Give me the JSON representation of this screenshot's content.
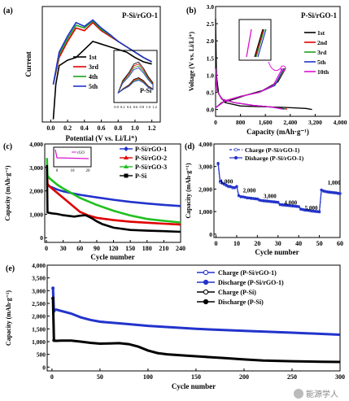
{
  "chart_data": [
    {
      "panel": "(a)",
      "type": "line",
      "annotation": "P-Si/rGO-1",
      "xlabel": "Potential (V vs. Li/Li⁺)",
      "ylabel": "Current",
      "xticks": [
        "0.0",
        "0.2",
        "0.4",
        "0.6",
        "0.8",
        "1.0",
        "1.2"
      ],
      "xlim": [
        -0.1,
        1.3
      ],
      "legend": [
        "1st",
        "3rd",
        "4th",
        "5th"
      ],
      "series": [
        {
          "name": "1st",
          "color": "#000000",
          "x": [
            0.03,
            0.06,
            0.1,
            0.2,
            0.3,
            0.4,
            0.5,
            0.6,
            0.7,
            0.8,
            0.9,
            1.0,
            1.1,
            1.2
          ],
          "y": [
            -0.95,
            -0.3,
            0.05,
            0.15,
            0.2,
            0.35,
            0.5,
            0.45,
            0.4,
            0.35,
            0.3,
            0.2,
            0.12,
            0.08
          ]
        },
        {
          "name": "3rd",
          "color": "#e00000",
          "x": [
            0.03,
            0.1,
            0.2,
            0.3,
            0.4,
            0.5,
            0.6,
            0.7,
            0.8,
            0.9,
            1.0,
            1.1,
            1.2
          ],
          "y": [
            -0.3,
            0.2,
            0.5,
            0.75,
            0.7,
            0.85,
            0.7,
            0.6,
            0.5,
            0.4,
            0.3,
            0.2,
            0.12
          ]
        },
        {
          "name": "4th",
          "color": "#20a020",
          "x": [
            0.03,
            0.1,
            0.2,
            0.3,
            0.4,
            0.5,
            0.6,
            0.7,
            0.8,
            0.9,
            1.0,
            1.1,
            1.2
          ],
          "y": [
            -0.3,
            0.25,
            0.55,
            0.8,
            0.75,
            0.88,
            0.72,
            0.62,
            0.5,
            0.4,
            0.3,
            0.2,
            0.12
          ]
        },
        {
          "name": "5th",
          "color": "#2233cc",
          "x": [
            0.03,
            0.1,
            0.2,
            0.3,
            0.4,
            0.5,
            0.6,
            0.7,
            0.8,
            0.9,
            1.0,
            1.1,
            1.2
          ],
          "y": [
            -0.3,
            0.3,
            0.6,
            0.85,
            0.78,
            0.9,
            0.75,
            0.63,
            0.5,
            0.4,
            0.3,
            0.2,
            0.12
          ]
        }
      ],
      "inset": {
        "label": "P-Si",
        "xticks": [
          "0.0",
          "0.2",
          "0.4",
          "0.6",
          "0.8",
          "1.0",
          "1.2"
        ]
      }
    },
    {
      "panel": "(b)",
      "type": "line",
      "annotation": "P-Si/rGO-1",
      "xlabel": "Capacity (mAh·g⁻¹)",
      "ylabel": "Voltage (V vs. Li/Li⁺)",
      "xticks": [
        "0",
        "800",
        "1,600",
        "2,400",
        "3,200",
        "4,000"
      ],
      "yticks": [
        "0.0",
        "0.5",
        "1.0",
        "1.5",
        "2.0",
        "2.5",
        "3.0"
      ],
      "xlim": [
        0,
        4000
      ],
      "ylim": [
        0,
        3.0
      ],
      "legend": [
        "1st",
        "2nd",
        "3rd",
        "5th",
        "10th"
      ],
      "series": [
        {
          "name": "1st",
          "color": "#000000",
          "discharge_x": [
            0,
            30,
            100,
            300,
            800,
            1500,
            2200,
            2900,
            3100
          ],
          "discharge_y": [
            2.65,
            1.0,
            0.45,
            0.2,
            0.1,
            0.08,
            0.06,
            0.03,
            0.0
          ],
          "charge_x": [
            0,
            200,
            600,
            1000,
            1500,
            2000,
            2250
          ],
          "charge_y": [
            0.05,
            0.2,
            0.3,
            0.42,
            0.55,
            0.8,
            1.2
          ]
        },
        {
          "name": "2nd",
          "color": "#e00000",
          "discharge_x": [
            0,
            50,
            200,
            600,
            1200,
            1800,
            2300
          ],
          "discharge_y": [
            1.2,
            0.55,
            0.3,
            0.2,
            0.12,
            0.07,
            0.01
          ],
          "charge_x": [
            0,
            300,
            800,
            1400,
            1900,
            2250
          ],
          "charge_y": [
            0.05,
            0.25,
            0.38,
            0.5,
            0.7,
            1.2
          ]
        },
        {
          "name": "3rd",
          "color": "#20a020",
          "discharge_x": [
            0,
            50,
            200,
            600,
            1200,
            1800,
            2250
          ],
          "discharge_y": [
            1.2,
            0.55,
            0.3,
            0.2,
            0.12,
            0.07,
            0.01
          ],
          "charge_x": [
            0,
            300,
            800,
            1400,
            1900,
            2230
          ],
          "charge_y": [
            0.05,
            0.25,
            0.38,
            0.5,
            0.7,
            1.2
          ]
        },
        {
          "name": "5th",
          "color": "#2233cc",
          "discharge_x": [
            0,
            50,
            200,
            600,
            1200,
            1800,
            2200
          ],
          "discharge_y": [
            1.2,
            0.55,
            0.3,
            0.2,
            0.12,
            0.07,
            0.01
          ],
          "charge_x": [
            0,
            300,
            800,
            1400,
            1900,
            2200
          ],
          "charge_y": [
            0.05,
            0.25,
            0.38,
            0.5,
            0.7,
            1.2
          ]
        },
        {
          "name": "10th",
          "color": "#e010d0",
          "discharge_x": [
            0,
            50,
            200,
            600,
            1200,
            1800,
            2150
          ],
          "discharge_y": [
            1.2,
            0.55,
            0.3,
            0.2,
            0.12,
            0.07,
            0.01
          ],
          "charge_x": [
            0,
            300,
            800,
            1400,
            1850,
            2150
          ],
          "charge_y": [
            0.05,
            0.25,
            0.38,
            0.5,
            0.7,
            1.2
          ]
        }
      ]
    },
    {
      "panel": "(c)",
      "type": "line",
      "xlabel": "Cycle number",
      "ylabel": "Capacity (mAh·g⁻¹)",
      "xticks": [
        "0",
        "30",
        "60",
        "90",
        "120",
        "150",
        "180",
        "210",
        "240"
      ],
      "yticks": [
        "0",
        "1,000",
        "2,000",
        "3,000",
        "4,000"
      ],
      "xlim": [
        0,
        240
      ],
      "ylim": [
        -200,
        4000
      ],
      "legend": [
        "P-Si/rGO-1",
        "P-Si/rGO-2",
        "P-Si/rGO-3",
        "P-Si"
      ],
      "series": [
        {
          "name": "P-Si/rGO-1",
          "color": "#2233cc",
          "x": [
            1,
            2,
            5,
            10,
            20,
            30,
            45,
            60,
            90,
            120,
            150,
            180,
            210,
            240
          ],
          "y": [
            2300,
            2250,
            2200,
            2150,
            2050,
            1980,
            1900,
            1830,
            1720,
            1620,
            1530,
            1460,
            1400,
            1350
          ]
        },
        {
          "name": "P-Si/rGO-2",
          "color": "#e00000",
          "x": [
            1,
            2,
            5,
            10,
            20,
            30,
            45,
            60,
            75,
            90,
            120,
            150,
            180,
            210,
            240
          ],
          "y": [
            3100,
            2300,
            2200,
            2100,
            1900,
            1700,
            1400,
            1100,
            950,
            850,
            750,
            680,
            640,
            600,
            560
          ]
        },
        {
          "name": "P-Si/rGO-3",
          "color": "#20c020",
          "x": [
            1,
            2,
            5,
            10,
            20,
            30,
            45,
            60,
            90,
            120,
            150,
            180,
            210,
            240
          ],
          "y": [
            3400,
            2650,
            2550,
            2450,
            2250,
            2100,
            1900,
            1700,
            1400,
            1150,
            950,
            800,
            720,
            650
          ]
        },
        {
          "name": "P-Si",
          "color": "#000000",
          "x": [
            1,
            2,
            5,
            10,
            20,
            30,
            40,
            50,
            60,
            70,
            80,
            90,
            100,
            120,
            150,
            180,
            210,
            240
          ],
          "y": [
            3100,
            1080,
            1060,
            1040,
            1010,
            960,
            930,
            900,
            940,
            960,
            850,
            700,
            580,
            430,
            330,
            300,
            280,
            250
          ]
        }
      ],
      "inset": {
        "xticks": [
          "0",
          "10",
          "20"
        ],
        "legend": "rGO",
        "y_value": 2.9
      }
    },
    {
      "panel": "(d)",
      "type": "line",
      "xlabel": "Cycle number",
      "ylabel": "Capacity (mAh·g⁻¹)",
      "xticks": [
        "0",
        "10",
        "20",
        "30",
        "40",
        "50",
        "60"
      ],
      "yticks": [
        "0",
        "1,000",
        "2,000",
        "3,000",
        "4,000"
      ],
      "xlim": [
        0,
        60
      ],
      "ylim": [
        0,
        4000
      ],
      "legend": [
        "Charge   (P-Si/rGO-1)",
        "Disharge (P-Si/rGO-1)"
      ],
      "rate_labels": [
        {
          "text": "1,000",
          "x": 2,
          "y": 2250
        },
        {
          "text": "2,000",
          "x": 13,
          "y": 1850
        },
        {
          "text": "3,000",
          "x": 23,
          "y": 1600
        },
        {
          "text": "4,000",
          "x": 33,
          "y": 1320
        },
        {
          "text": "5,000",
          "x": 43,
          "y": 1080
        },
        {
          "text": "1,000",
          "x": 54,
          "y": 2200
        }
      ],
      "x": [
        1,
        2,
        3,
        4,
        5,
        6,
        7,
        8,
        9,
        10,
        11,
        12,
        13,
        14,
        15,
        16,
        17,
        18,
        19,
        20,
        21,
        22,
        23,
        24,
        25,
        26,
        27,
        28,
        29,
        30,
        31,
        32,
        33,
        34,
        35,
        36,
        37,
        38,
        39,
        40,
        41,
        42,
        43,
        44,
        45,
        46,
        47,
        48,
        49,
        50,
        51,
        52,
        53,
        54,
        55,
        56,
        57,
        58,
        59,
        60
      ],
      "series": [
        {
          "name": "Charge",
          "color": "#2233cc",
          "y": [
            3100,
            2300,
            2250,
            2200,
            2150,
            2100,
            2100,
            2050,
            2050,
            2100,
            1700,
            1650,
            1650,
            1630,
            1600,
            1600,
            1580,
            1570,
            1560,
            1550,
            1500,
            1480,
            1470,
            1460,
            1450,
            1440,
            1430,
            1420,
            1410,
            1400,
            1300,
            1290,
            1280,
            1270,
            1260,
            1250,
            1240,
            1230,
            1220,
            1210,
            1100,
            1080,
            1060,
            1050,
            1040,
            1020,
            1010,
            1000,
            990,
            980,
            1950,
            1900,
            1880,
            1860,
            1850,
            1840,
            1830,
            1820,
            1800,
            1790
          ]
        },
        {
          "name": "Disharge",
          "color": "#2233cc",
          "y": [
            3150,
            2350,
            2280,
            2230,
            2180,
            2130,
            2120,
            2080,
            2070,
            2120,
            1720,
            1670,
            1660,
            1640,
            1620,
            1610,
            1600,
            1590,
            1580,
            1570,
            1520,
            1500,
            1490,
            1480,
            1470,
            1460,
            1450,
            1440,
            1430,
            1420,
            1320,
            1310,
            1300,
            1290,
            1280,
            1270,
            1260,
            1250,
            1240,
            1230,
            1120,
            1100,
            1080,
            1070,
            1060,
            1040,
            1030,
            1020,
            1010,
            1000,
            1970,
            1920,
            1900,
            1880,
            1870,
            1860,
            1850,
            1840,
            1820,
            1810
          ]
        }
      ]
    },
    {
      "panel": "(e)",
      "type": "line",
      "xlabel": "Cycle number",
      "ylabel": "Capacity (mAh·g⁻¹)",
      "xticks": [
        "0",
        "50",
        "100",
        "150",
        "200",
        "250",
        "300"
      ],
      "yticks": [
        "0",
        "500",
        "1,000",
        "1,500",
        "2,000",
        "2,500",
        "3,000",
        "3,500",
        "4,000"
      ],
      "xlim": [
        -5,
        300
      ],
      "ylim": [
        0,
        4000
      ],
      "legend": [
        "Charge      (P-Si/rGO-1)",
        "Discharge  (P-Si/rGO-1)",
        "Charge      (P-Si)",
        "Discharge  (P-Si)"
      ],
      "series": [
        {
          "name": "P-Si/rGO-1",
          "color": "#2233cc",
          "x": [
            1,
            2,
            3,
            5,
            10,
            20,
            30,
            40,
            50,
            75,
            100,
            150,
            200,
            250,
            300
          ],
          "y": [
            3100,
            2200,
            2250,
            2250,
            2200,
            2100,
            1950,
            1850,
            1780,
            1700,
            1620,
            1500,
            1420,
            1350,
            1270
          ]
        },
        {
          "name": "P-Si",
          "color": "#000000",
          "x": [
            1,
            2,
            3,
            5,
            10,
            20,
            30,
            40,
            50,
            60,
            70,
            80,
            90,
            100,
            110,
            120,
            140,
            160,
            180,
            200,
            220,
            250,
            280,
            300
          ],
          "y": [
            2700,
            1050,
            1030,
            1030,
            1040,
            1040,
            1000,
            950,
            920,
            930,
            940,
            900,
            800,
            650,
            550,
            500,
            450,
            400,
            350,
            300,
            260,
            230,
            210,
            200
          ]
        }
      ]
    }
  ],
  "watermark": "能源学人"
}
